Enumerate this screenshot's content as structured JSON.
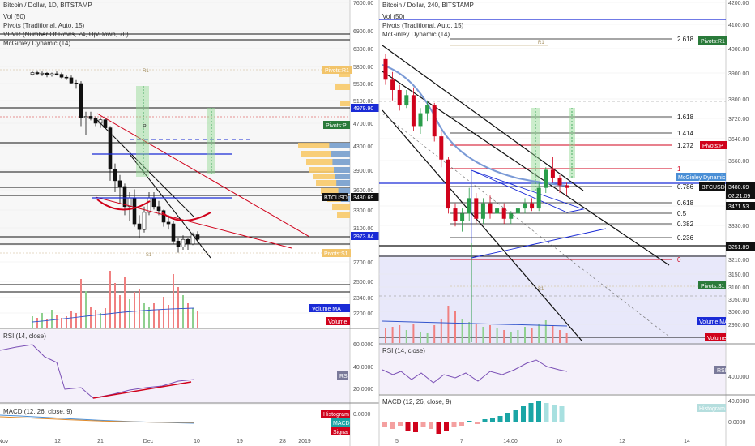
{
  "colors": {
    "up": "#2a9d4a",
    "down": "#d0021b",
    "fill": "#ffffff",
    "pane_bg": "#f4f0fa",
    "grid": "#e9e9e9",
    "tag_blue": "#1a2bd6",
    "tag_green": "#2a7a3a",
    "tag_red": "#d0021b",
    "tag_black": "#111111",
    "tag_sky": "#4a8fd6",
    "macd_teal": "#1aa5a5"
  },
  "left": {
    "title": "Bitcoin / Dollar, 1D, BITSTAMP",
    "legend": [
      "Vol (50)",
      "Pivots (Traditional, Auto, 15)",
      "VPVR (Number Of Rows, 24, Up/Down, 70)",
      "McGinley Dynamic (14)"
    ],
    "rsi_legend": "RSI (14, close)",
    "macd_legend": "MACD (12, 26, close, 9)",
    "x_ticks": [
      "Nov",
      "12",
      "21",
      "Dec",
      "10",
      "19",
      "28",
      "2019"
    ],
    "y_ticks": [
      "7600.00",
      "6900.00",
      "6300.00",
      "5800.00",
      "5500.00",
      "5100.00",
      "4700.00",
      "4300.00",
      "3900.00",
      "3600.00",
      "3300.00",
      "3100.00",
      "2700.00",
      "2500.00",
      "2340.00",
      "2200.00"
    ],
    "rsi_ticks": [
      "60.0000",
      "40.0000",
      "20.0000"
    ],
    "macd_ticks": [
      "0.0000"
    ],
    "pivot_labels": [
      "R1",
      "S1"
    ],
    "tags": [
      "Pivots:R1",
      "4979.90",
      "Pivots:P",
      "BTCUSD",
      "3480.69",
      "2973.84",
      "Pivots:S1",
      "Volume MA",
      "Volume",
      "RSI",
      "Histogram",
      "MACD",
      "Signal"
    ]
  },
  "right": {
    "title": "Bitcoin / Dollar, 240, BITSTAMP",
    "legend": [
      "Vol (50)",
      "Pivots (Traditional, Auto, 15)",
      "McGinley Dynamic (14)"
    ],
    "rsi_legend": "RSI (14, close)",
    "macd_legend": "MACD (12, 26, close, 9)",
    "x_ticks": [
      "5",
      "7",
      "14:00",
      "10",
      "12",
      "14"
    ],
    "y_ticks": [
      "4200.00",
      "4100.00",
      "4000.00",
      "3900.00",
      "3800.00",
      "3720.00",
      "3640.00",
      "3560.00",
      "3480.00",
      "3400.00",
      "3330.00",
      "3210.00",
      "3150.00",
      "3100.00",
      "3050.00",
      "3000.00",
      "2950.00"
    ],
    "rsi_ticks": [
      "40.0000"
    ],
    "macd_ticks": [
      "40.0000",
      "0.0000"
    ],
    "fib_levels": [
      "2.618",
      "1.618",
      "1.414",
      "1.272",
      "1",
      "0.786",
      "0.618",
      "0.5",
      "0.382",
      "0.236",
      "0"
    ],
    "pivot_labels": [
      "R1",
      "S1"
    ],
    "tags": [
      "Pivots:R1",
      "Pivots:P",
      "McGinley Dynamic",
      "BTCUSD",
      "3480.69",
      "02:21:09",
      "3471.53",
      "3251.89",
      "Pivots:S1",
      "Volume MA",
      "Volume",
      "RSI",
      "Histogram"
    ]
  },
  "chart_data": [
    {
      "type": "candlestick",
      "title": "Bitcoin / Dollar, 1D, BITSTAMP",
      "x_ticks": [
        "Nov",
        "12",
        "21",
        "Dec",
        "10",
        "19",
        "28",
        "2019"
      ],
      "ylim": [
        2200,
        7600
      ],
      "ohlc": [
        [
          6350,
          6400,
          6330,
          6380
        ],
        [
          6380,
          6420,
          6340,
          6360
        ],
        [
          6360,
          6400,
          6320,
          6370
        ],
        [
          6370,
          6390,
          6300,
          6340
        ],
        [
          6340,
          6380,
          6310,
          6360
        ],
        [
          6360,
          6400,
          6330,
          6350
        ],
        [
          6350,
          6380,
          6280,
          6300
        ],
        [
          6300,
          6340,
          6250,
          6290
        ],
        [
          6290,
          6330,
          6180,
          6200
        ],
        [
          6200,
          6250,
          6100,
          6190
        ],
        [
          6190,
          6230,
          5450,
          5600
        ],
        [
          5600,
          5700,
          5300,
          5620
        ],
        [
          5620,
          5700,
          5550,
          5580
        ],
        [
          5580,
          5620,
          5450,
          5500
        ],
        [
          5500,
          5600,
          5420,
          5560
        ],
        [
          5560,
          5600,
          5400,
          5420
        ],
        [
          5420,
          5450,
          4500,
          4700
        ],
        [
          4700,
          4800,
          4300,
          4500
        ],
        [
          4500,
          4600,
          4100,
          4400
        ],
        [
          4400,
          4450,
          3900,
          4050
        ],
        [
          4050,
          4300,
          3800,
          4200
        ],
        [
          4200,
          4350,
          3700,
          3750
        ],
        [
          3750,
          3900,
          3500,
          3650
        ],
        [
          3650,
          4050,
          3600,
          3950
        ],
        [
          3950,
          4300,
          3900,
          4200
        ],
        [
          4200,
          4300,
          4000,
          4050
        ],
        [
          4050,
          4150,
          3900,
          3980
        ],
        [
          3980,
          4000,
          3700,
          3780
        ],
        [
          3780,
          3900,
          3650,
          3750
        ],
        [
          3750,
          3800,
          3400,
          3450
        ],
        [
          3450,
          3500,
          3250,
          3350
        ],
        [
          3350,
          3550,
          3300,
          3480
        ],
        [
          3480,
          3500,
          3300,
          3400
        ],
        [
          3400,
          3600,
          3380,
          3560
        ],
        [
          3560,
          3620,
          3420,
          3480
        ]
      ],
      "pivots": {
        "R1": 5800,
        "P": 4700,
        "S1": 2700
      },
      "price_tags": {
        "last": 3480.69,
        "high_line": 4979.9,
        "low_line": 2973.84
      }
    },
    {
      "type": "candlestick",
      "title": "Bitcoin / Dollar, 240, BITSTAMP",
      "x_ticks": [
        "5",
        "7",
        "14:00",
        "10",
        "12",
        "14"
      ],
      "ylim": [
        2950,
        4200
      ],
      "ohlc": [
        [
          3980,
          4000,
          3880,
          3900
        ],
        [
          3900,
          3930,
          3820,
          3860
        ],
        [
          3860,
          3880,
          3780,
          3800
        ],
        [
          3800,
          3860,
          3790,
          3840
        ],
        [
          3840,
          3870,
          3700,
          3720
        ],
        [
          3720,
          3790,
          3690,
          3770
        ],
        [
          3770,
          3820,
          3740,
          3800
        ],
        [
          3800,
          3810,
          3660,
          3680
        ],
        [
          3680,
          3700,
          3560,
          3590
        ],
        [
          3590,
          3600,
          3380,
          3400
        ],
        [
          3400,
          3420,
          3330,
          3350
        ],
        [
          3350,
          3400,
          3310,
          3380
        ],
        [
          3380,
          3480,
          3350,
          3440
        ],
        [
          3440,
          3460,
          3340,
          3360
        ],
        [
          3360,
          3440,
          3340,
          3420
        ],
        [
          3420,
          3450,
          3360,
          3380
        ],
        [
          3380,
          3410,
          3330,
          3400
        ],
        [
          3400,
          3420,
          3340,
          3360
        ],
        [
          3360,
          3390,
          3340,
          3380
        ],
        [
          3380,
          3420,
          3360,
          3400
        ],
        [
          3400,
          3440,
          3380,
          3420
        ],
        [
          3420,
          3440,
          3390,
          3400
        ],
        [
          3400,
          3500,
          3390,
          3480
        ],
        [
          3480,
          3560,
          3460,
          3550
        ],
        [
          3550,
          3600,
          3500,
          3520
        ],
        [
          3520,
          3530,
          3460,
          3490
        ],
        [
          3490,
          3500,
          3450,
          3480
        ]
      ],
      "fib": [
        {
          "level": "2.618",
          "price": 4030
        },
        {
          "level": "1.618",
          "price": 3718
        },
        {
          "level": "1.414",
          "price": 3656
        },
        {
          "level": "1.272",
          "price": 3612
        },
        {
          "level": "1",
          "price": 3530
        },
        {
          "level": "0.786",
          "price": 3470
        },
        {
          "level": "0.618",
          "price": 3420
        },
        {
          "level": "0.5",
          "price": 3382
        },
        {
          "level": "0.382",
          "price": 3345
        },
        {
          "level": "0.236",
          "price": 3302
        },
        {
          "level": "0",
          "price": 3232
        }
      ],
      "pivots": {
        "R1": 4020,
        "P": 3610,
        "S1": 3120
      },
      "price_tags": {
        "last": 3480.69,
        "mcginley": 3497,
        "countdown": "02:21:09",
        "second": 3471.53,
        "low_line": 3251.89
      }
    }
  ]
}
